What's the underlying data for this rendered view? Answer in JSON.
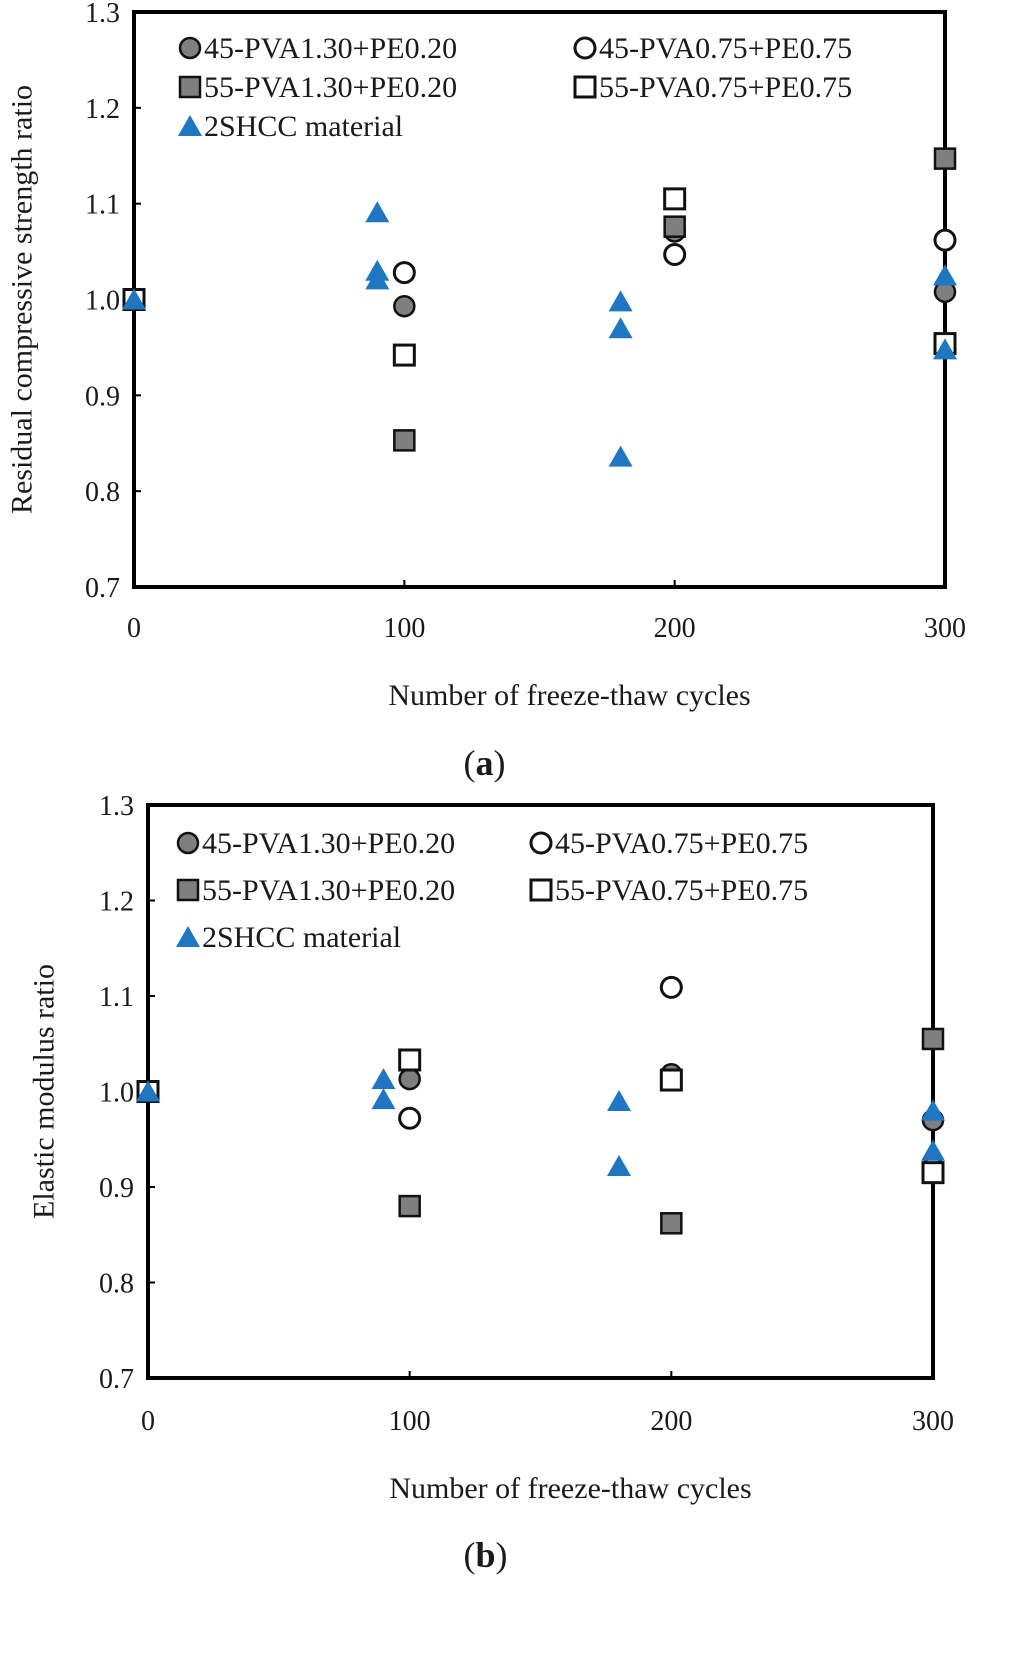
{
  "chart_data": [
    {
      "type": "scatter",
      "panel_label": "(a)",
      "panel_letter": "a",
      "xlabel": "Number of freeze-thaw  cycles",
      "ylabel": "Residual compressive strength ratio",
      "xlim": [
        0,
        300
      ],
      "ylim": [
        0.7,
        1.3
      ],
      "xticks": [
        "0",
        "100",
        "200",
        "300"
      ],
      "yticks": [
        "0.7",
        "0.8",
        "0.9",
        "1.0",
        "1.1",
        "1.2",
        "1.3"
      ],
      "legend_position": "top",
      "series": [
        {
          "name": "45-PVA1.30+PE0.20",
          "marker": "circle-filled",
          "color": "#7f7f7f",
          "points": [
            [
              0,
              1.0
            ],
            [
              100,
              0.993
            ],
            [
              200,
              1.071
            ],
            [
              300,
              1.008
            ]
          ]
        },
        {
          "name": "45-PVA0.75+PE0.75",
          "marker": "circle-open",
          "color": "#ffffff",
          "points": [
            [
              0,
              1.0
            ],
            [
              100,
              1.028
            ],
            [
              200,
              1.047
            ],
            [
              300,
              1.062
            ]
          ]
        },
        {
          "name": "55-PVA1.30+PE0.20",
          "marker": "square-filled",
          "color": "#7f7f7f",
          "points": [
            [
              0,
              1.0
            ],
            [
              100,
              0.853
            ],
            [
              200,
              1.076
            ],
            [
              300,
              1.147
            ]
          ]
        },
        {
          "name": "55-PVA0.75+PE0.75",
          "marker": "square-open",
          "color": "#ffffff",
          "points": [
            [
              0,
              1.0
            ],
            [
              100,
              0.942
            ],
            [
              200,
              1.105
            ],
            [
              300,
              0.954
            ]
          ]
        },
        {
          "name": "2SHCC material",
          "marker": "triangle-filled",
          "color": "#1f77c4",
          "points": [
            [
              0,
              1.0
            ],
            [
              90,
              1.091
            ],
            [
              90,
              1.03
            ],
            [
              90,
              1.021
            ],
            [
              180,
              0.998
            ],
            [
              180,
              0.97
            ],
            [
              180,
              0.836
            ],
            [
              300,
              1.025
            ],
            [
              300,
              0.948
            ]
          ]
        }
      ]
    },
    {
      "type": "scatter",
      "panel_label": "(b)",
      "panel_letter": "b",
      "xlabel": "Number of freeze-thaw  cycles",
      "ylabel": "Elastic modulus ratio",
      "xlim": [
        0,
        300
      ],
      "ylim": [
        0.7,
        1.3
      ],
      "xticks": [
        "0",
        "100",
        "200",
        "300"
      ],
      "yticks": [
        "0.7",
        "0.8",
        "0.9",
        "1.0",
        "1.1",
        "1.2",
        "1.3"
      ],
      "legend_position": "top",
      "series": [
        {
          "name": "45-PVA1.30+PE0.20",
          "marker": "circle-filled",
          "color": "#7f7f7f",
          "points": [
            [
              0,
              1.0
            ],
            [
              100,
              1.013
            ],
            [
              200,
              1.018
            ],
            [
              300,
              0.97
            ]
          ]
        },
        {
          "name": "45-PVA0.75+PE0.75",
          "marker": "circle-open",
          "color": "#ffffff",
          "points": [
            [
              0,
              1.0
            ],
            [
              100,
              0.972
            ],
            [
              200,
              1.109
            ],
            [
              300,
              0.92
            ]
          ]
        },
        {
          "name": "55-PVA1.30+PE0.20",
          "marker": "square-filled",
          "color": "#7f7f7f",
          "points": [
            [
              0,
              1.0
            ],
            [
              100,
              0.88
            ],
            [
              200,
              0.862
            ],
            [
              300,
              1.055
            ]
          ]
        },
        {
          "name": "55-PVA0.75+PE0.75",
          "marker": "square-open",
          "color": "#ffffff",
          "points": [
            [
              0,
              1.0
            ],
            [
              100,
              1.033
            ],
            [
              200,
              1.012
            ],
            [
              300,
              0.915
            ]
          ]
        },
        {
          "name": "2SHCC material",
          "marker": "triangle-filled",
          "color": "#1f77c4",
          "points": [
            [
              0,
              1.0
            ],
            [
              90,
              1.013
            ],
            [
              90,
              0.992
            ],
            [
              180,
              0.99
            ],
            [
              180,
              0.922
            ],
            [
              300,
              0.98
            ],
            [
              300,
              0.938
            ]
          ]
        }
      ]
    }
  ]
}
